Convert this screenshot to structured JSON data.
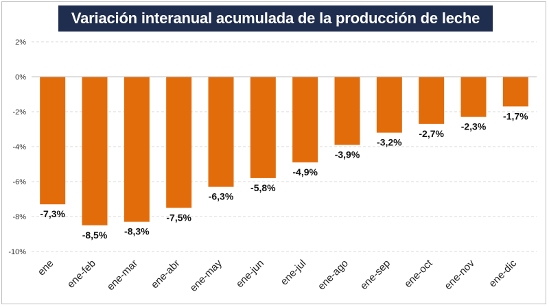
{
  "chart_data": {
    "type": "bar",
    "title": "Variación interanual acumulada de la producción de leche",
    "categories": [
      "ene",
      "ene-feb",
      "ene-mar",
      "ene-abr",
      "ene-may",
      "ene-jun",
      "ene-jul",
      "ene-ago",
      "ene-sep",
      "ene-oct",
      "ene-nov",
      "ene-dic"
    ],
    "values": [
      -7.3,
      -8.5,
      -8.3,
      -7.5,
      -6.3,
      -5.8,
      -4.9,
      -3.9,
      -3.2,
      -2.7,
      -2.3,
      -1.7
    ],
    "data_labels": [
      "-7,3%",
      "-8,5%",
      "-8,3%",
      "-7,5%",
      "-6,3%",
      "-5,8%",
      "-4,9%",
      "-3,9%",
      "-3,2%",
      "-2,7%",
      "-2,3%",
      "-1,7%"
    ],
    "y_ticks": [
      2,
      0,
      -2,
      -4,
      -6,
      -8,
      -10
    ],
    "y_tick_labels": [
      "2%",
      "0%",
      "-2%",
      "-4%",
      "-6%",
      "-8%",
      "-10%"
    ],
    "ylim": [
      -10,
      2
    ],
    "xlabel": "",
    "ylabel": "",
    "grid": true,
    "legend": "none",
    "colors": {
      "bar": "#e36c0a",
      "title_bg": "#1f2d4f",
      "grid": "#d9d9d9"
    }
  }
}
